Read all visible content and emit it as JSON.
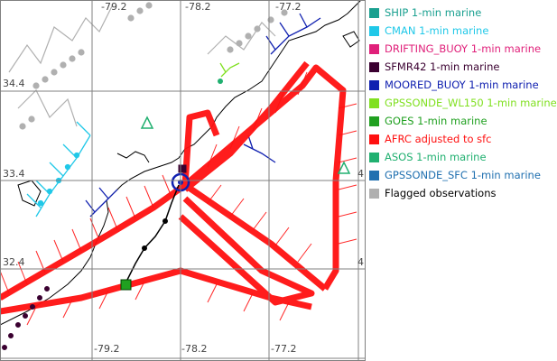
{
  "map": {
    "lon_ticks_top": [
      "-79.2",
      "-78.2",
      "-77.2"
    ],
    "lon_ticks_bottom": [
      "-79.2",
      "-78.2",
      "-77.2"
    ],
    "lat_ticks_left": [
      "34.4",
      "33.4",
      "32.4"
    ],
    "lat_ticks_right": [
      "4",
      "4"
    ]
  },
  "legend": {
    "items": [
      {
        "label": "SHIP 1-min marine",
        "color": "#1aa090"
      },
      {
        "label": "CMAN 1-min marine",
        "color": "#20c8e8"
      },
      {
        "label": "DRIFTING_BUOY 1-min marine",
        "color": "#e0207a"
      },
      {
        "label": "SFMR42 1-min marine",
        "color": "#3a0030"
      },
      {
        "label": "MOORED_BUOY 1-min marine",
        "color": "#1020b0"
      },
      {
        "label": "GPSSONDE_WL150 1-min marine",
        "color": "#80e020"
      },
      {
        "label": "GOES 1-min marine",
        "color": "#20a020"
      },
      {
        "label": "AFRC adjusted to sfc",
        "color": "#ff1010"
      },
      {
        "label": "ASOS 1-min marine",
        "color": "#20b070"
      },
      {
        "label": "GPSSONDE_SFC 1-min marine",
        "color": "#2070b0"
      },
      {
        "label": "Flagged observations",
        "color": "#b0b0b0"
      }
    ]
  }
}
